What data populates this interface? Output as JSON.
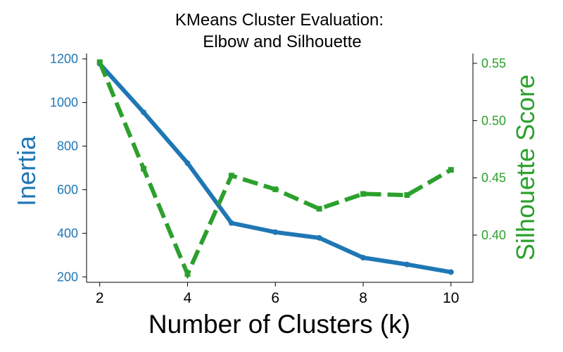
{
  "chart_data": {
    "type": "line",
    "title_lines": [
      "KMeans Cluster Evaluation:",
      "Elbow and Silhouette"
    ],
    "xlabel": "Number of Clusters (k)",
    "x": [
      2,
      3,
      4,
      5,
      6,
      7,
      8,
      9,
      10
    ],
    "xlim": [
      1.7,
      10.5
    ],
    "xticks": [
      2,
      4,
      6,
      8,
      10
    ],
    "left_axis": {
      "label": "Inertia",
      "color": "#1f77b4",
      "ylim": [
        175,
        1225
      ],
      "ticks": [
        200,
        400,
        600,
        800,
        1000,
        1200
      ]
    },
    "right_axis": {
      "label": "Silhouette Score",
      "color": "#2ca02c",
      "ylim": [
        0.3588,
        0.5586
      ],
      "ticks": [
        0.4,
        0.45,
        0.5,
        0.55
      ],
      "tick_format": 2
    },
    "series": [
      {
        "axis": "left",
        "color": "#1f77b4",
        "line_style": "solid",
        "marker": "circle",
        "values": [
          1178,
          955,
          722,
          447,
          405,
          379,
          288,
          257,
          222
        ]
      },
      {
        "axis": "right",
        "color": "#2ca02c",
        "line_style": "dashed",
        "marker": "square",
        "values": [
          0.551,
          0.458,
          0.366,
          0.452,
          0.44,
          0.423,
          0.436,
          0.435,
          0.457
        ]
      }
    ],
    "grid": false,
    "legend": "none"
  }
}
